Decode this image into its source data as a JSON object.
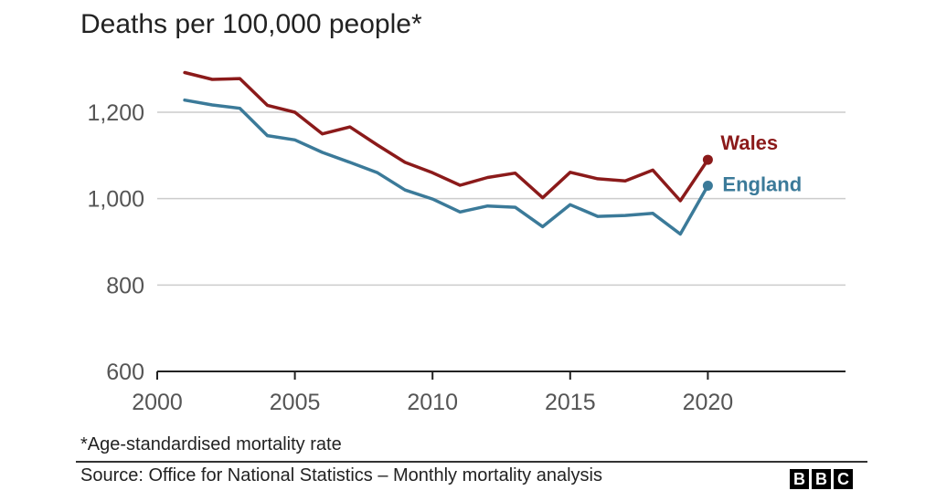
{
  "chart_data": {
    "type": "line",
    "title": "Deaths per 100,000 people*",
    "xlabel": "",
    "ylabel": "",
    "xlim": [
      2000,
      2025
    ],
    "ylim": [
      600,
      1300
    ],
    "x_ticks": [
      2000,
      2005,
      2010,
      2015,
      2020
    ],
    "y_ticks": [
      600,
      800,
      1000,
      1200
    ],
    "grid": true,
    "x": [
      2001,
      2002,
      2003,
      2004,
      2005,
      2006,
      2007,
      2008,
      2009,
      2010,
      2011,
      2012,
      2013,
      2014,
      2015,
      2016,
      2017,
      2018,
      2019,
      2020
    ],
    "series": [
      {
        "name": "Wales",
        "color": "#8b1a1a",
        "values": [
          1292,
          1276,
          1278,
          1216,
          1200,
          1150,
          1166,
          1124,
          1084,
          1060,
          1031,
          1049,
          1059,
          1002,
          1061,
          1046,
          1041,
          1066,
          995,
          1090
        ]
      },
      {
        "name": "England",
        "color": "#3b7a99",
        "values": [
          1228,
          1217,
          1209,
          1146,
          1136,
          1107,
          1084,
          1060,
          1020,
          999,
          969,
          983,
          980,
          935,
          986,
          959,
          961,
          966,
          918,
          1030
        ]
      }
    ],
    "footnote": "*Age-standardised mortality rate",
    "source": "Source: Office for National Statistics – Monthly mortality analysis"
  },
  "branding": {
    "logo_letters": [
      "B",
      "B",
      "C"
    ]
  }
}
